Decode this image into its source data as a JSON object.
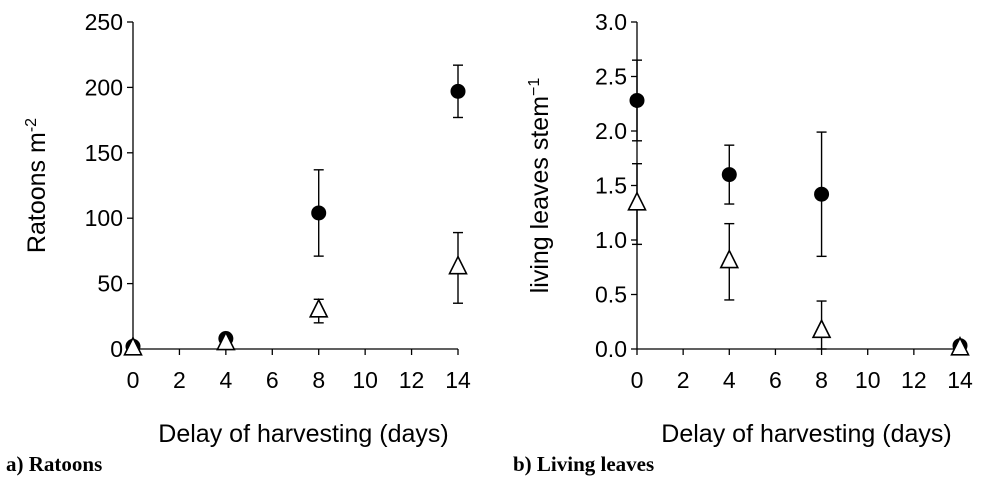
{
  "chart_data": [
    {
      "type": "scatter",
      "caption": "a) Ratoons",
      "xlabel": "Delay of harvesting (days)",
      "ylabel": "Ratoons m",
      "ylabel_sup": "-2",
      "xlim": [
        0,
        14
      ],
      "ylim": [
        0,
        250
      ],
      "xticks": [
        "0",
        "2",
        "4",
        "6",
        "8",
        "10",
        "12",
        "14"
      ],
      "yticks": [
        "0",
        "50",
        "100",
        "150",
        "200",
        "250"
      ],
      "grid": false,
      "series": [
        {
          "marker": "filled-circle",
          "points": [
            {
              "x": 0,
              "y": 2,
              "err": 0
            },
            {
              "x": 4,
              "y": 8,
              "err": 0
            },
            {
              "x": 8,
              "y": 104,
              "err": 33
            },
            {
              "x": 14,
              "y": 197,
              "err": 20
            }
          ]
        },
        {
          "marker": "open-triangle",
          "points": [
            {
              "x": 0,
              "y": 0,
              "err": 0
            },
            {
              "x": 4,
              "y": 4,
              "err": 0
            },
            {
              "x": 8,
              "y": 29,
              "err": 9
            },
            {
              "x": 14,
              "y": 62,
              "err": 27
            }
          ]
        }
      ]
    },
    {
      "type": "scatter",
      "caption": "b) Living leaves",
      "xlabel": "Delay of harvesting (days)",
      "ylabel": "living leaves stem",
      "ylabel_sup": "−1",
      "xlim": [
        0,
        14
      ],
      "ylim": [
        0,
        3.0
      ],
      "xticks": [
        "0",
        "2",
        "4",
        "6",
        "8",
        "10",
        "12",
        "14"
      ],
      "yticks": [
        "0.0",
        "0.5",
        "1.0",
        "1.5",
        "2.0",
        "2.5",
        "3.0"
      ],
      "grid": false,
      "series": [
        {
          "marker": "filled-circle",
          "points": [
            {
              "x": 0,
              "y": 2.28,
              "err": 0.37
            },
            {
              "x": 4,
              "y": 1.6,
              "err": 0.27
            },
            {
              "x": 8,
              "y": 1.42,
              "err": 0.57
            },
            {
              "x": 14,
              "y": 0.03,
              "err": 0
            }
          ]
        },
        {
          "marker": "open-triangle",
          "points": [
            {
              "x": 0,
              "y": 1.33,
              "err": 0.37
            },
            {
              "x": 4,
              "y": 0.8,
              "err": 0.35
            },
            {
              "x": 8,
              "y": 0.16,
              "err": 0.28
            },
            {
              "x": 14,
              "y": 0.0,
              "err": 0
            }
          ]
        }
      ]
    }
  ]
}
